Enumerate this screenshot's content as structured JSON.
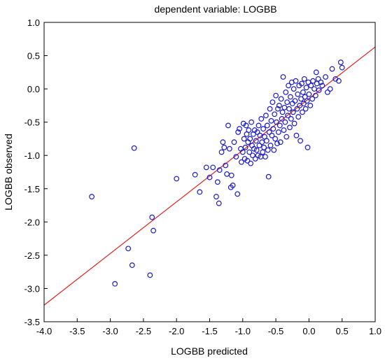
{
  "chart_data": {
    "type": "scatter",
    "title": "dependent variable: LOGBB",
    "xlabel": "LOGBB predicted",
    "ylabel": "LOGBB observed",
    "xlim": [
      -4.0,
      1.0
    ],
    "ylim": [
      -3.5,
      1.0
    ],
    "xticks": [
      "-4.0",
      "-3.5",
      "-3.0",
      "-2.5",
      "-2.0",
      "-1.5",
      "-1.0",
      "-0.5",
      "0.0",
      "0.5",
      "1.0"
    ],
    "yticks": [
      "1.0",
      "0.5",
      "0.0",
      "-0.5",
      "-1.0",
      "-1.5",
      "-2.0",
      "-2.5",
      "-3.0",
      "-3.5"
    ],
    "grid": false,
    "colors": {
      "points": "#1a1ad0",
      "fit_line": "#e02020"
    },
    "fit_line": {
      "x": [
        -4.0,
        1.0
      ],
      "y": [
        -3.25,
        0.63
      ]
    },
    "series": [
      {
        "points": [
          [
            -3.28,
            -1.62
          ],
          [
            -2.93,
            -2.93
          ],
          [
            -2.73,
            -2.4
          ],
          [
            -2.67,
            -2.65
          ],
          [
            -2.64,
            -0.89
          ],
          [
            -2.4,
            -2.8
          ],
          [
            -2.37,
            -1.93
          ],
          [
            -2.35,
            -2.13
          ],
          [
            -2.0,
            -1.35
          ],
          [
            -1.72,
            -1.29
          ],
          [
            -1.65,
            -1.55
          ],
          [
            -1.55,
            -1.18
          ],
          [
            -1.5,
            -1.33
          ],
          [
            -1.45,
            -1.18
          ],
          [
            -1.4,
            -1.62
          ],
          [
            -1.38,
            -1.4
          ],
          [
            -1.36,
            -1.72
          ],
          [
            -1.35,
            -1.22
          ],
          [
            -1.32,
            -0.95
          ],
          [
            -1.3,
            -0.8
          ],
          [
            -1.28,
            -0.88
          ],
          [
            -1.26,
            -1.15
          ],
          [
            -1.24,
            -1.28
          ],
          [
            -1.22,
            -0.55
          ],
          [
            -1.2,
            -0.9
          ],
          [
            -1.18,
            -1.48
          ],
          [
            -1.17,
            -1.3
          ],
          [
            -1.15,
            -1.45
          ],
          [
            -1.13,
            -0.8
          ],
          [
            -1.1,
            -1.02
          ],
          [
            -1.08,
            -1.58
          ],
          [
            -1.07,
            -0.65
          ],
          [
            -1.05,
            -0.6
          ],
          [
            -1.03,
            -0.9
          ],
          [
            -1.02,
            -1.1
          ],
          [
            -1.0,
            -0.95
          ],
          [
            -0.99,
            -0.52
          ],
          [
            -0.98,
            -0.75
          ],
          [
            -0.97,
            -1.05
          ],
          [
            -0.96,
            -0.88
          ],
          [
            -0.95,
            -0.55
          ],
          [
            -0.94,
            -0.68
          ],
          [
            -0.93,
            -1.08
          ],
          [
            -0.92,
            -0.8
          ],
          [
            -0.91,
            -0.62
          ],
          [
            -0.9,
            -0.95
          ],
          [
            -0.89,
            -0.75
          ],
          [
            -0.88,
            -1.12
          ],
          [
            -0.87,
            -0.5
          ],
          [
            -0.86,
            -0.85
          ],
          [
            -0.85,
            -1.0
          ],
          [
            -0.84,
            -0.68
          ],
          [
            -0.83,
            -0.9
          ],
          [
            -0.82,
            -0.62
          ],
          [
            -0.81,
            -1.05
          ],
          [
            -0.8,
            -0.78
          ],
          [
            -0.79,
            -0.92
          ],
          [
            -0.78,
            -0.65
          ],
          [
            -0.77,
            -1.0
          ],
          [
            -0.76,
            -0.55
          ],
          [
            -0.75,
            -0.85
          ],
          [
            -0.74,
            -0.7
          ],
          [
            -0.73,
            -1.02
          ],
          [
            -0.72,
            -0.45
          ],
          [
            -0.71,
            -0.8
          ],
          [
            -0.7,
            -0.95
          ],
          [
            -0.69,
            -0.6
          ],
          [
            -0.68,
            -0.88
          ],
          [
            -0.67,
            -0.72
          ],
          [
            -0.66,
            -1.02
          ],
          [
            -0.65,
            -0.4
          ],
          [
            -0.64,
            -0.78
          ],
          [
            -0.63,
            -0.55
          ],
          [
            -0.62,
            -0.92
          ],
          [
            -0.61,
            -1.32
          ],
          [
            -0.6,
            -0.65
          ],
          [
            -0.59,
            -0.3
          ],
          [
            -0.58,
            -0.85
          ],
          [
            -0.57,
            -0.48
          ],
          [
            -0.56,
            -0.7
          ],
          [
            -0.55,
            -0.2
          ],
          [
            -0.54,
            -0.6
          ],
          [
            -0.53,
            -0.92
          ],
          [
            -0.52,
            -0.38
          ],
          [
            -0.51,
            -0.75
          ],
          [
            -0.5,
            -0.1
          ],
          [
            -0.49,
            -0.5
          ],
          [
            -0.48,
            -0.82
          ],
          [
            -0.47,
            -0.3
          ],
          [
            -0.46,
            -0.65
          ],
          [
            -0.45,
            -0.25
          ],
          [
            -0.44,
            -0.55
          ],
          [
            -0.43,
            -0.8
          ],
          [
            -0.42,
            -0.15
          ],
          [
            -0.41,
            -0.45
          ],
          [
            -0.4,
            -0.35
          ],
          [
            -0.39,
            0.18
          ],
          [
            -0.38,
            -0.62
          ],
          [
            -0.37,
            -0.28
          ],
          [
            -0.36,
            -0.5
          ],
          [
            -0.35,
            -0.05
          ],
          [
            -0.34,
            -0.72
          ],
          [
            -0.33,
            -0.2
          ],
          [
            -0.32,
            -0.4
          ],
          [
            -0.31,
            0.05
          ],
          [
            -0.3,
            -0.3
          ],
          [
            -0.29,
            -0.58
          ],
          [
            -0.28,
            -0.12
          ],
          [
            -0.27,
            -0.45
          ],
          [
            -0.26,
            0.1
          ],
          [
            -0.25,
            -0.22
          ],
          [
            -0.24,
            -0.35
          ],
          [
            -0.23,
            0.0
          ],
          [
            -0.22,
            -0.52
          ],
          [
            -0.21,
            -0.18
          ],
          [
            -0.2,
            0.12
          ],
          [
            -0.19,
            -0.7
          ],
          [
            -0.18,
            -0.3
          ],
          [
            -0.17,
            -0.08
          ],
          [
            -0.16,
            -0.42
          ],
          [
            -0.15,
            0.05
          ],
          [
            -0.14,
            -0.25
          ],
          [
            -0.13,
            -0.78
          ],
          [
            -0.12,
            -0.15
          ],
          [
            -0.11,
            0.08
          ],
          [
            -0.1,
            -0.35
          ],
          [
            -0.09,
            -0.05
          ],
          [
            -0.08,
            -0.22
          ],
          [
            -0.07,
            0.15
          ],
          [
            -0.06,
            -0.12
          ],
          [
            -0.05,
            -0.3
          ],
          [
            -0.04,
            0.02
          ],
          [
            -0.03,
            -0.18
          ],
          [
            -0.02,
            -0.88
          ],
          [
            -0.01,
            0.1
          ],
          [
            0.0,
            -0.08
          ],
          [
            0.02,
            -0.25
          ],
          [
            0.03,
            0.05
          ],
          [
            0.05,
            -0.15
          ],
          [
            0.06,
            0.12
          ],
          [
            0.08,
            0.0
          ],
          [
            0.1,
            -0.1
          ],
          [
            0.11,
            0.25
          ],
          [
            0.12,
            0.08
          ],
          [
            0.14,
            0.15
          ],
          [
            0.15,
            -0.02
          ],
          [
            0.18,
            0.1
          ],
          [
            0.2,
            0.05
          ],
          [
            0.25,
            0.18
          ],
          [
            0.28,
            -0.05
          ],
          [
            0.32,
            0.0
          ],
          [
            0.35,
            0.3
          ],
          [
            0.4,
            0.15
          ],
          [
            0.45,
            0.12
          ],
          [
            0.48,
            0.4
          ],
          [
            0.5,
            0.32
          ]
        ]
      }
    ]
  }
}
